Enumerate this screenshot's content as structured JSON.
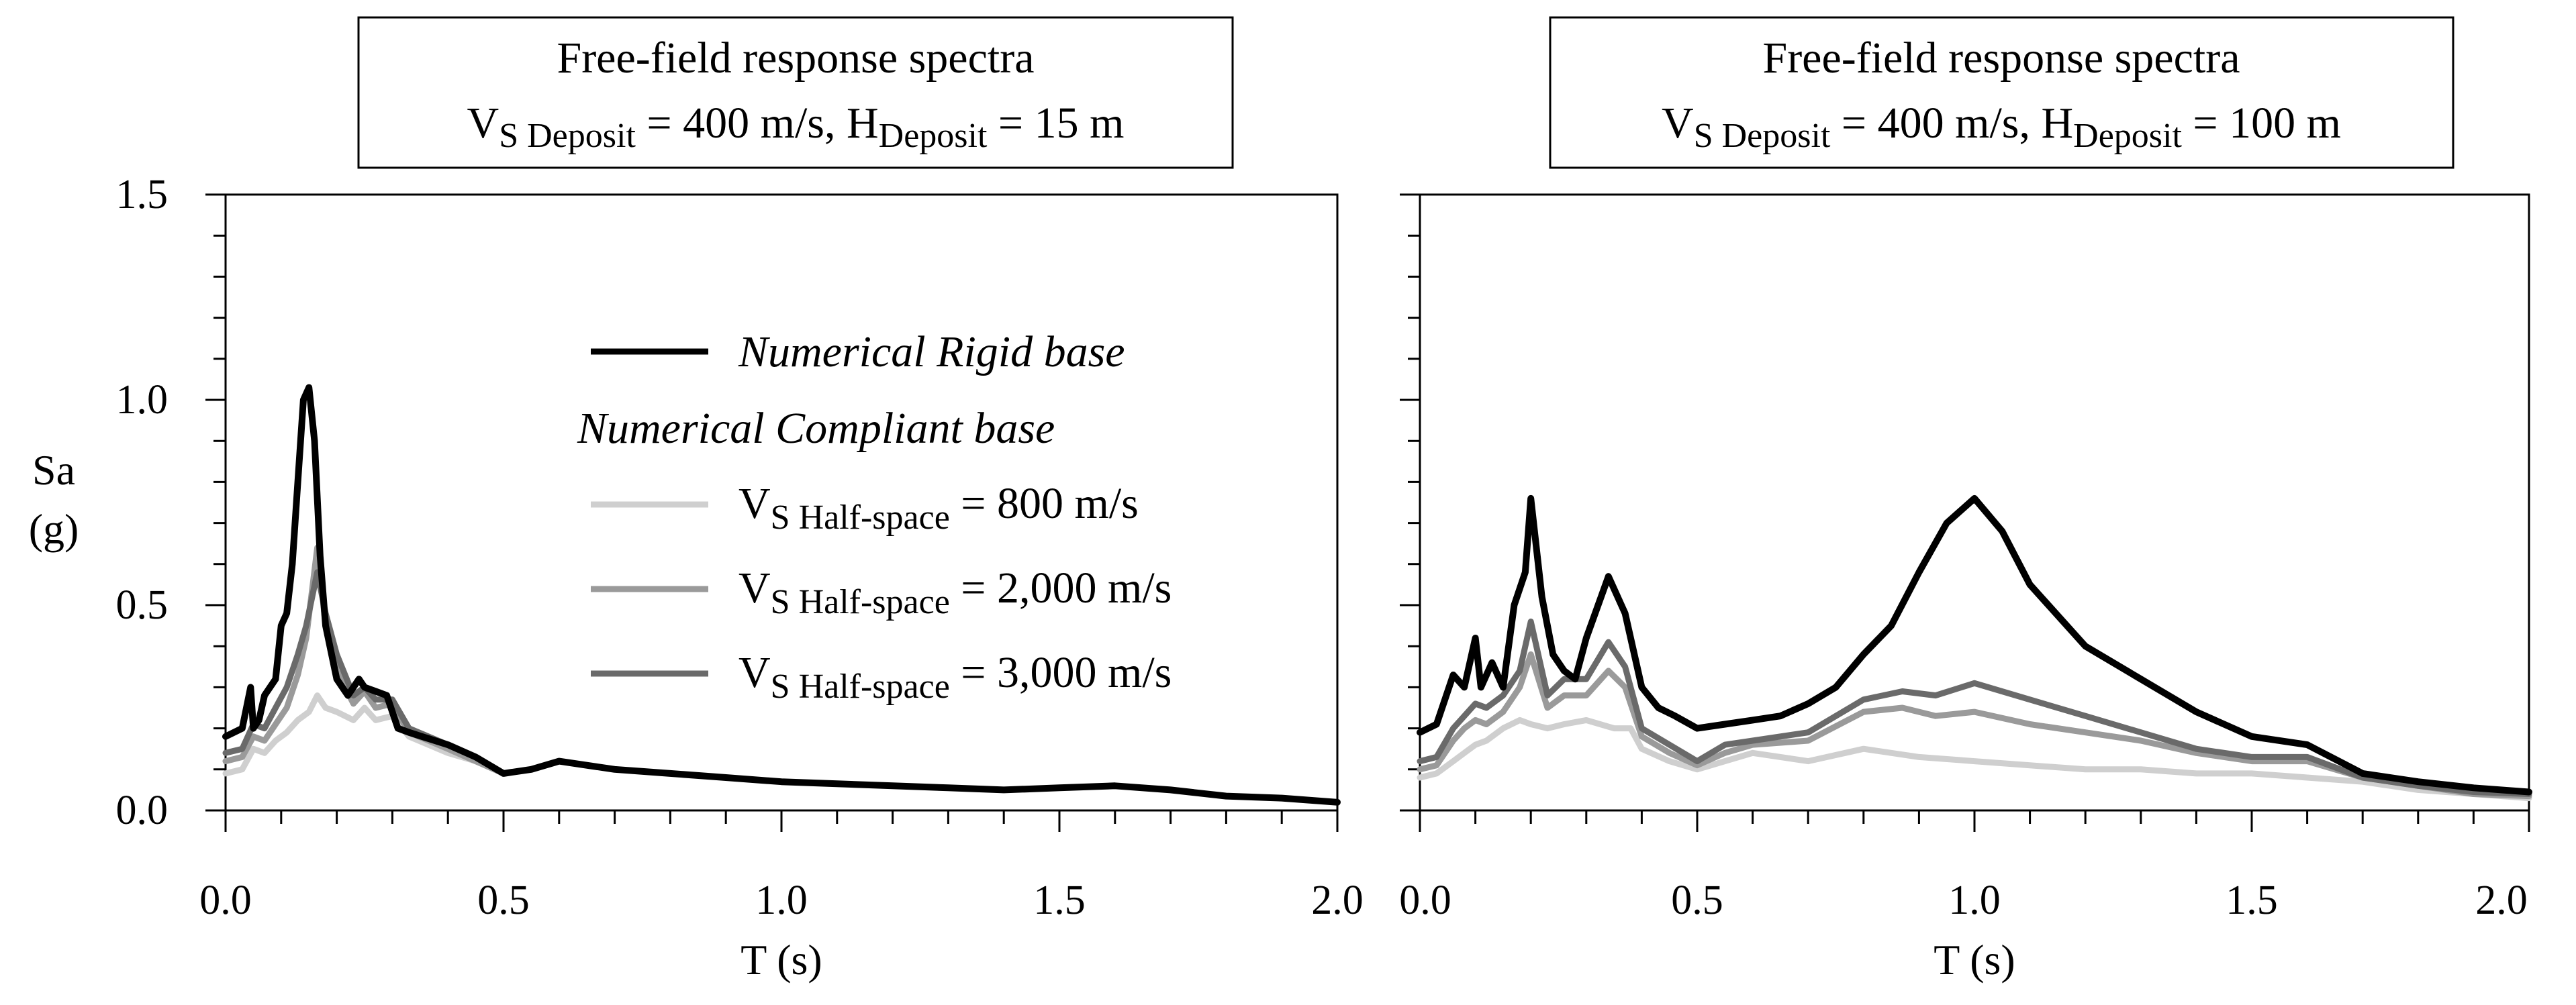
{
  "chart_data": [
    {
      "type": "line",
      "title_line1": "Free-field response spectra",
      "title_line2": {
        "v": "V",
        "vsub": "S Deposit",
        "mid": " = 400 m/s, H",
        "hsub": "Deposit",
        "tail": " = 15 m"
      },
      "xlabel": "T (s)",
      "ylabel_line1": "Sa",
      "ylabel_line2": "(g)",
      "xlim": [
        0,
        2.0
      ],
      "ylim": [
        0,
        1.5
      ],
      "xticks": [
        "0.0",
        "0.5",
        "1.0",
        "1.5",
        "2.0"
      ],
      "yticks": [
        "0.0",
        "0.5",
        "1.0",
        "1.5"
      ],
      "show_yticklabels": true,
      "legend": {
        "placement": "center",
        "rigid_label": "Numerical Rigid base",
        "compliant_heading": "Numerical Compliant base",
        "entries": [
          {
            "v": "V",
            "sub": "S Half-space",
            "tail": " = 800 m/s"
          },
          {
            "v": "V",
            "sub": "S Half-space",
            "tail": " = 2,000 m/s"
          },
          {
            "v": "V",
            "sub": "S Half-space",
            "tail": " = 3,000 m/s"
          }
        ]
      },
      "series": [
        {
          "name": "VS Half-space = 800 m/s",
          "color": "#cfcfcf",
          "x": [
            0,
            0.03,
            0.05,
            0.07,
            0.09,
            0.11,
            0.13,
            0.15,
            0.165,
            0.18,
            0.2,
            0.23,
            0.25,
            0.27,
            0.3,
            0.33,
            0.4,
            0.45,
            0.5,
            0.55,
            0.6,
            0.7,
            0.8,
            0.9,
            1.0,
            1.1,
            1.2,
            1.3,
            1.4,
            1.5,
            1.6,
            1.7,
            1.8,
            1.9,
            2.0
          ],
          "y": [
            0.09,
            0.1,
            0.15,
            0.14,
            0.17,
            0.19,
            0.22,
            0.24,
            0.28,
            0.25,
            0.24,
            0.22,
            0.25,
            0.22,
            0.23,
            0.18,
            0.14,
            0.12,
            0.09,
            0.1,
            0.12,
            0.1,
            0.09,
            0.08,
            0.07,
            0.065,
            0.06,
            0.055,
            0.05,
            0.055,
            0.06,
            0.05,
            0.035,
            0.03,
            0.02
          ]
        },
        {
          "name": "VS Half-space = 2,000 m/s",
          "color": "#9a9a9a",
          "x": [
            0,
            0.03,
            0.05,
            0.07,
            0.09,
            0.11,
            0.13,
            0.145,
            0.165,
            0.18,
            0.2,
            0.23,
            0.25,
            0.27,
            0.3,
            0.33,
            0.4,
            0.45,
            0.5,
            0.55,
            0.6,
            0.7,
            0.8,
            0.9,
            1.0,
            1.1,
            1.2,
            1.3,
            1.4,
            1.5,
            1.6,
            1.7,
            1.8,
            1.9,
            2.0
          ],
          "y": [
            0.12,
            0.13,
            0.18,
            0.17,
            0.21,
            0.25,
            0.33,
            0.42,
            0.64,
            0.45,
            0.34,
            0.26,
            0.29,
            0.25,
            0.26,
            0.19,
            0.15,
            0.12,
            0.09,
            0.1,
            0.12,
            0.1,
            0.09,
            0.08,
            0.07,
            0.065,
            0.06,
            0.055,
            0.05,
            0.055,
            0.06,
            0.05,
            0.035,
            0.03,
            0.02
          ]
        },
        {
          "name": "VS Half-space = 3,000 m/s",
          "color": "#6a6a6a",
          "x": [
            0,
            0.03,
            0.05,
            0.07,
            0.09,
            0.11,
            0.13,
            0.145,
            0.165,
            0.18,
            0.2,
            0.23,
            0.25,
            0.27,
            0.3,
            0.33,
            0.4,
            0.45,
            0.5,
            0.55,
            0.6,
            0.7,
            0.8,
            0.9,
            1.0,
            1.1,
            1.2,
            1.3,
            1.4,
            1.5,
            1.6,
            1.7,
            1.8,
            1.9,
            2.0
          ],
          "y": [
            0.14,
            0.15,
            0.21,
            0.2,
            0.25,
            0.3,
            0.38,
            0.45,
            0.58,
            0.48,
            0.38,
            0.28,
            0.3,
            0.27,
            0.27,
            0.2,
            0.16,
            0.13,
            0.09,
            0.1,
            0.12,
            0.1,
            0.09,
            0.08,
            0.07,
            0.065,
            0.06,
            0.055,
            0.05,
            0.055,
            0.06,
            0.05,
            0.035,
            0.03,
            0.02
          ]
        },
        {
          "name": "Numerical Rigid base",
          "color": "#000000",
          "x": [
            0,
            0.03,
            0.045,
            0.05,
            0.06,
            0.07,
            0.08,
            0.09,
            0.1,
            0.11,
            0.12,
            0.13,
            0.14,
            0.15,
            0.16,
            0.17,
            0.18,
            0.2,
            0.22,
            0.24,
            0.25,
            0.27,
            0.29,
            0.31,
            0.33,
            0.4,
            0.45,
            0.5,
            0.55,
            0.6,
            0.7,
            0.8,
            0.9,
            1.0,
            1.1,
            1.2,
            1.3,
            1.4,
            1.5,
            1.6,
            1.7,
            1.8,
            1.9,
            2.0
          ],
          "y": [
            0.18,
            0.2,
            0.3,
            0.2,
            0.22,
            0.28,
            0.3,
            0.32,
            0.45,
            0.48,
            0.6,
            0.8,
            1.0,
            1.03,
            0.9,
            0.62,
            0.45,
            0.32,
            0.28,
            0.32,
            0.3,
            0.29,
            0.28,
            0.2,
            0.19,
            0.16,
            0.13,
            0.09,
            0.1,
            0.12,
            0.1,
            0.09,
            0.08,
            0.07,
            0.065,
            0.06,
            0.055,
            0.05,
            0.055,
            0.06,
            0.05,
            0.035,
            0.03,
            0.02
          ]
        }
      ]
    },
    {
      "type": "line",
      "title_line1": "Free-field response spectra",
      "title_line2": {
        "v": "V",
        "vsub": "S Deposit",
        "mid": " = 400 m/s, H",
        "hsub": "Deposit",
        "tail": " = 100 m"
      },
      "xlabel": "T (s)",
      "xlim": [
        0,
        2.0
      ],
      "ylim": [
        0,
        1.5
      ],
      "xticks": [
        "0.0",
        "0.5",
        "1.0",
        "1.5",
        "2.0"
      ],
      "yticks": [
        "0.0",
        "0.5",
        "1.0",
        "1.5"
      ],
      "show_yticklabels": false,
      "series": [
        {
          "name": "VS Half-space = 800 m/s",
          "color": "#cfcfcf",
          "x": [
            0,
            0.03,
            0.06,
            0.08,
            0.1,
            0.12,
            0.15,
            0.18,
            0.2,
            0.23,
            0.26,
            0.3,
            0.35,
            0.38,
            0.4,
            0.45,
            0.5,
            0.55,
            0.6,
            0.7,
            0.8,
            0.9,
            1.0,
            1.1,
            1.2,
            1.3,
            1.4,
            1.5,
            1.6,
            1.7,
            1.8,
            1.9,
            2.0
          ],
          "y": [
            0.08,
            0.09,
            0.12,
            0.14,
            0.16,
            0.17,
            0.2,
            0.22,
            0.21,
            0.2,
            0.21,
            0.22,
            0.2,
            0.2,
            0.15,
            0.12,
            0.1,
            0.12,
            0.14,
            0.12,
            0.15,
            0.13,
            0.12,
            0.11,
            0.1,
            0.1,
            0.09,
            0.09,
            0.08,
            0.07,
            0.05,
            0.04,
            0.03
          ]
        },
        {
          "name": "VS Half-space = 2,000 m/s",
          "color": "#9a9a9a",
          "x": [
            0,
            0.03,
            0.06,
            0.08,
            0.1,
            0.12,
            0.15,
            0.18,
            0.2,
            0.23,
            0.26,
            0.3,
            0.34,
            0.37,
            0.4,
            0.45,
            0.5,
            0.55,
            0.6,
            0.7,
            0.8,
            0.87,
            0.93,
            1.0,
            1.1,
            1.2,
            1.3,
            1.4,
            1.5,
            1.6,
            1.7,
            1.8,
            1.9,
            2.0
          ],
          "y": [
            0.1,
            0.11,
            0.17,
            0.2,
            0.22,
            0.21,
            0.24,
            0.3,
            0.38,
            0.25,
            0.28,
            0.28,
            0.34,
            0.3,
            0.18,
            0.14,
            0.11,
            0.14,
            0.16,
            0.17,
            0.24,
            0.25,
            0.23,
            0.24,
            0.21,
            0.19,
            0.17,
            0.14,
            0.12,
            0.12,
            0.08,
            0.06,
            0.04,
            0.035
          ]
        },
        {
          "name": "VS Half-space = 3,000 m/s",
          "color": "#6a6a6a",
          "x": [
            0,
            0.03,
            0.06,
            0.08,
            0.1,
            0.12,
            0.15,
            0.18,
            0.2,
            0.23,
            0.26,
            0.3,
            0.34,
            0.37,
            0.4,
            0.45,
            0.5,
            0.55,
            0.6,
            0.7,
            0.8,
            0.87,
            0.93,
            1.0,
            1.1,
            1.2,
            1.3,
            1.4,
            1.5,
            1.6,
            1.7,
            1.8,
            1.9,
            2.0
          ],
          "y": [
            0.12,
            0.13,
            0.2,
            0.23,
            0.26,
            0.25,
            0.28,
            0.34,
            0.46,
            0.28,
            0.32,
            0.32,
            0.41,
            0.35,
            0.2,
            0.16,
            0.12,
            0.16,
            0.17,
            0.19,
            0.27,
            0.29,
            0.28,
            0.31,
            0.27,
            0.23,
            0.19,
            0.15,
            0.13,
            0.13,
            0.08,
            0.06,
            0.045,
            0.04
          ]
        },
        {
          "name": "Numerical Rigid base",
          "color": "#000000",
          "x": [
            0,
            0.03,
            0.06,
            0.08,
            0.1,
            0.11,
            0.13,
            0.15,
            0.17,
            0.19,
            0.2,
            0.22,
            0.24,
            0.26,
            0.28,
            0.3,
            0.34,
            0.37,
            0.4,
            0.43,
            0.46,
            0.5,
            0.55,
            0.6,
            0.65,
            0.7,
            0.75,
            0.8,
            0.85,
            0.9,
            0.95,
            1.0,
            1.05,
            1.1,
            1.2,
            1.3,
            1.4,
            1.5,
            1.6,
            1.7,
            1.8,
            1.9,
            2.0
          ],
          "y": [
            0.19,
            0.21,
            0.33,
            0.3,
            0.42,
            0.3,
            0.36,
            0.3,
            0.5,
            0.58,
            0.76,
            0.52,
            0.38,
            0.34,
            0.32,
            0.42,
            0.57,
            0.48,
            0.3,
            0.25,
            0.23,
            0.2,
            0.21,
            0.22,
            0.23,
            0.26,
            0.3,
            0.38,
            0.45,
            0.58,
            0.7,
            0.76,
            0.68,
            0.55,
            0.4,
            0.32,
            0.24,
            0.18,
            0.16,
            0.09,
            0.07,
            0.055,
            0.045
          ]
        }
      ]
    }
  ]
}
